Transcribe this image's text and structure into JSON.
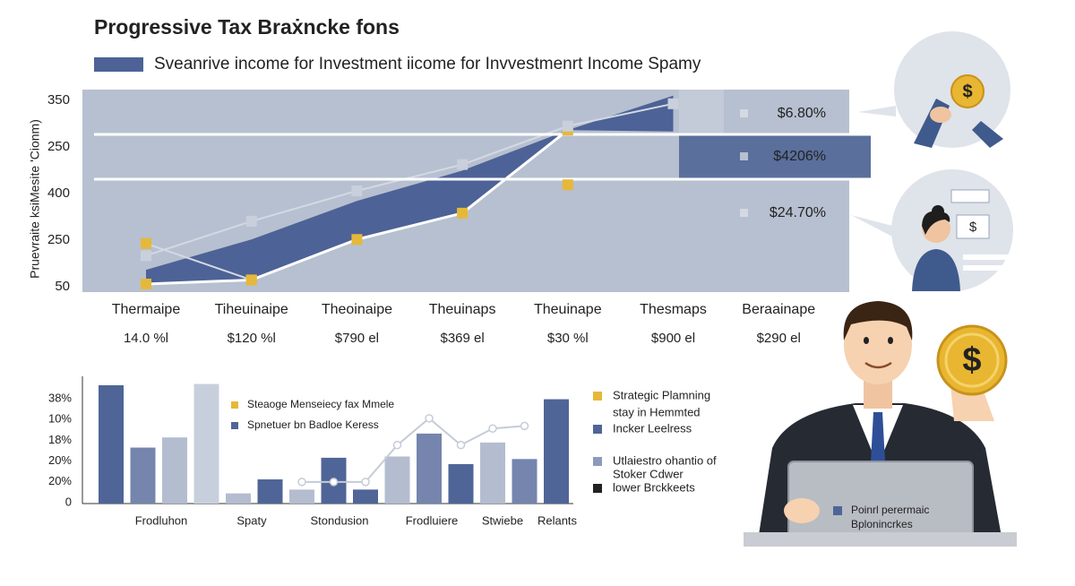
{
  "chart_data": [
    {
      "type": "area",
      "title": "Progressive Tax Braẋncke fons",
      "y_label": "Pruevraite ksiMesite 'Cionm)",
      "y_labels": [
        "350",
        "250",
        "400",
        "250",
        "50"
      ],
      "categories": [
        "Thermaipe",
        "Tiheuinaipe",
        "Theoinaipe",
        "Theuinaps",
        "Theuinape",
        "Thesmaps",
        "Beraainape"
      ],
      "category_sublabels": [
        "14.0 %l",
        "$120 %l",
        "$790 el",
        "$369 el",
        "$30 %l",
        "$900 el",
        "$290 el"
      ],
      "side_labels": [
        "$6.80%",
        "$4206%",
        "$24.70%"
      ],
      "ylim": [
        0,
        100
      ],
      "series": [
        {
          "name": "Sveanrive income for  Investment iicome for Invvestmenrt Income Spamy",
          "color": "#4d6296",
          "values": [
            11,
            26,
            45,
            60,
            80,
            97,
            null
          ]
        },
        {
          "color": "#ffffff",
          "marker": "#e6b83a",
          "values": [
            4,
            6,
            26,
            39,
            80,
            null,
            null
          ]
        },
        {
          "color": "#d3d9e3",
          "marker": "#c9d0dc",
          "values": [
            18,
            35,
            50,
            63,
            82,
            93,
            null
          ]
        },
        {
          "color": "#d3d9e3",
          "marker": "#e6b83a",
          "values": [
            24,
            6,
            null,
            null,
            53,
            null,
            null
          ]
        }
      ]
    },
    {
      "type": "bar",
      "y_labels": [
        "38%",
        "10%",
        "18%",
        "20%",
        "20%",
        "0"
      ],
      "x_labels": [
        "Frodluhon",
        "Spaty",
        "Stondusion",
        "Frodluiere",
        "Stwiebe",
        "Relants"
      ],
      "ylim": [
        0,
        100
      ],
      "values": [
        93,
        44,
        52,
        94,
        8,
        19,
        11,
        36,
        11,
        37,
        55,
        31,
        48,
        35,
        82
      ],
      "colors": [
        "#4f6597",
        "#7585ad",
        "#b4bdd0",
        "#c8cfdc",
        "#b4bdd0",
        "#4f6597",
        "#b4bdd0",
        "#4f6597",
        "#4f6597",
        "#b4bdd0",
        "#7585ad",
        "#4f6597",
        "#b4bdd0",
        "#7585ad",
        "#4f6597"
      ],
      "overlay": {
        "color": "#c5ccd8",
        "values": [
          null,
          null,
          null,
          null,
          null,
          null,
          17,
          17,
          17,
          46,
          67,
          46,
          59,
          61,
          null
        ]
      },
      "inner_legend": [
        {
          "text": "Steaoge Menseiecy fax Mmele",
          "color": "#e6b83a"
        },
        {
          "text": "Spnetuer bn Badloe Keress",
          "color": "#4f6597"
        }
      ],
      "side_legend": [
        {
          "text": "Strategic Plamning",
          "color": "#e6b83a"
        },
        {
          "text": "stay in Hemmted"
        },
        {
          "text": "Incker Leelress",
          "color": "#4f6597"
        },
        {
          "text": "Utlaiestro ohantio of",
          "color": "#8c9bbb"
        },
        {
          "text": "Stoker Cdwer"
        },
        {
          "text": "lower Brckkeets",
          "color": "#222222"
        }
      ]
    }
  ],
  "illustration": {
    "laptop_text": [
      "Poinrl perermaic",
      "Bplonincrkes"
    ]
  }
}
